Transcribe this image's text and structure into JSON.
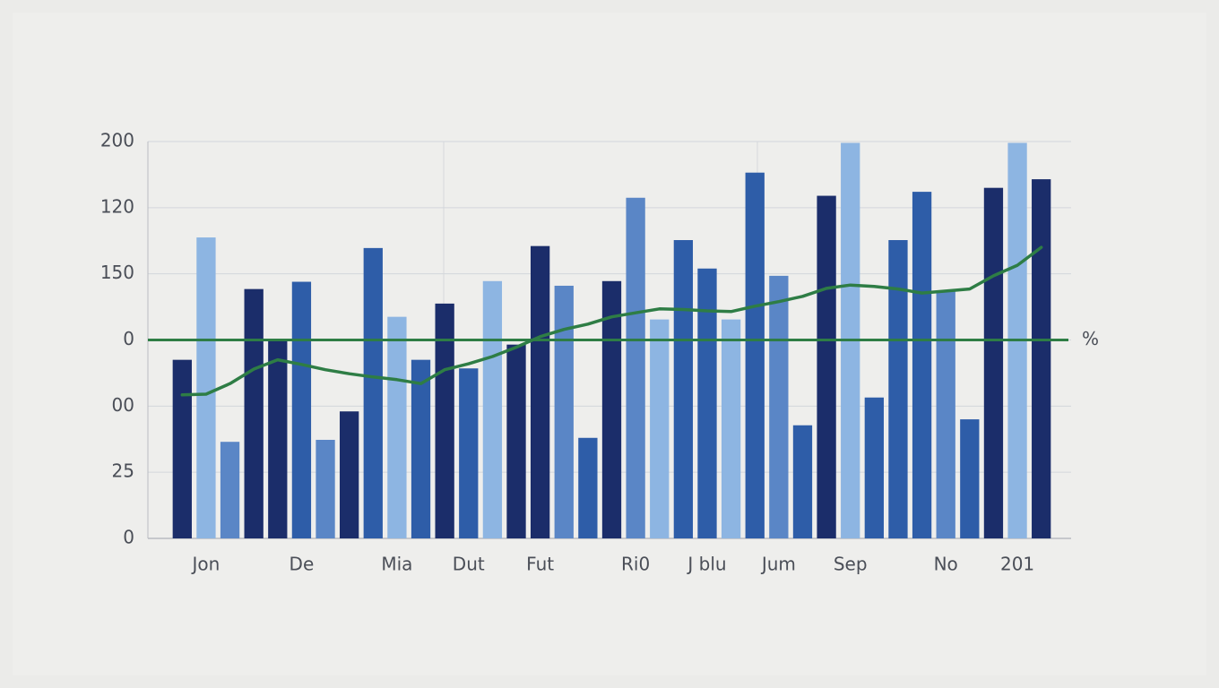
{
  "chart_data": {
    "type": "bar",
    "categories": [
      null,
      "Jon",
      null,
      null,
      null,
      "De",
      null,
      null,
      null,
      "Mia",
      null,
      null,
      "Dut",
      null,
      null,
      "Fut",
      null,
      null,
      null,
      "Ri0",
      null,
      null,
      "J blu",
      null,
      null,
      "Jum",
      null,
      null,
      "Sep",
      null,
      null,
      null,
      "No",
      null,
      null,
      "201",
      null
    ],
    "values": [
      2.7,
      4.55,
      1.46,
      3.77,
      3.02,
      3.88,
      1.49,
      1.92,
      4.39,
      3.35,
      2.7,
      3.55,
      2.57,
      3.89,
      2.93,
      4.42,
      3.82,
      1.52,
      3.89,
      5.15,
      3.31,
      4.51,
      4.08,
      3.31,
      5.53,
      3.97,
      1.71,
      5.18,
      5.98,
      2.13,
      4.51,
      5.24,
      3.74,
      1.8,
      5.3,
      5.98,
      5.43
    ],
    "colors": [
      "#1b2d6a",
      "#8db5e2",
      "#5a86c6",
      "#1b2d6a",
      "#1b2d6a",
      "#2e5da8",
      "#5a86c6",
      "#1b2d6a",
      "#2e5da8",
      "#8db5e2",
      "#2e5da8",
      "#1b2d6a",
      "#2e5da8",
      "#8db5e2",
      "#1b2d6a",
      "#1b2d6a",
      "#5a86c6",
      "#2e5da8",
      "#1b2d6a",
      "#5a86c6",
      "#8db5e2",
      "#2e5da8",
      "#2e5da8",
      "#8db5e2",
      "#2e5da8",
      "#5a86c6",
      "#2e5da8",
      "#1b2d6a",
      "#8db5e2",
      "#2e5da8",
      "#2e5da8",
      "#2e5da8",
      "#5a86c6",
      "#2e5da8",
      "#1b2d6a",
      "#8db5e2",
      "#1b2d6a"
    ],
    "line": {
      "type": "line",
      "color": "#2e7d45",
      "values": [
        2.17,
        2.18,
        2.34,
        2.56,
        2.7,
        2.63,
        2.55,
        2.49,
        2.44,
        2.4,
        2.34,
        2.55,
        2.64,
        2.75,
        2.89,
        3.05,
        3.16,
        3.24,
        3.35,
        3.41,
        3.47,
        3.46,
        3.44,
        3.43,
        3.51,
        3.58,
        3.66,
        3.78,
        3.83,
        3.81,
        3.77,
        3.71,
        3.74,
        3.77,
        3.97,
        4.13,
        4.4
      ]
    },
    "reference_line": {
      "value": 3,
      "label": "%",
      "color": "#2e7d45"
    },
    "ylim": [
      0,
      6
    ],
    "yticks": [
      0,
      {
        "value": 1,
        "label": "25"
      },
      {
        "value": 2,
        "label": "00"
      },
      {
        "value": 3,
        "label": "0"
      },
      {
        "value": 4,
        "label": "150"
      },
      {
        "value": 5,
        "label": "120"
      },
      {
        "value": 6,
        "label": "200"
      }
    ],
    "grid": true
  }
}
